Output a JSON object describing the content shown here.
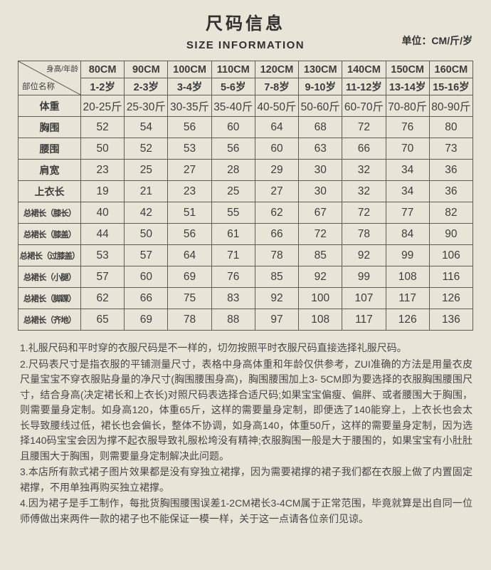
{
  "page": {
    "title": "尺码信息",
    "subtitle": "SIZE INFORMATION",
    "unit_label": "单位：CM/斤/岁"
  },
  "size_table": {
    "corner": {
      "top_right": "身高/年龄",
      "bottom_left": "部位名称"
    },
    "height_headers": [
      "80CM",
      "90CM",
      "100CM",
      "110CM",
      "120CM",
      "130CM",
      "140CM",
      "150CM",
      "160CM"
    ],
    "age_headers": [
      "1-2岁",
      "2-3岁",
      "3-4岁",
      "5-6岁",
      "7-8岁",
      "9-10岁",
      "11-12岁",
      "13-14岁",
      "15-16岁"
    ],
    "rows": [
      {
        "label": "体重",
        "values": [
          "20-25斤",
          "25-30斤",
          "30-35斤",
          "35-40斤",
          "40-50斤",
          "50-60斤",
          "60-70斤",
          "70-80斤",
          "80-90斤"
        ]
      },
      {
        "label": "胸围",
        "values": [
          "52",
          "54",
          "56",
          "60",
          "64",
          "68",
          "72",
          "76",
          "80"
        ]
      },
      {
        "label": "腰围",
        "values": [
          "50",
          "52",
          "53",
          "56",
          "60",
          "63",
          "66",
          "70",
          "73"
        ]
      },
      {
        "label": "肩宽",
        "values": [
          "23",
          "25",
          "27",
          "28",
          "29",
          "30",
          "32",
          "34",
          "36"
        ]
      },
      {
        "label": "上衣长",
        "values": [
          "19",
          "21",
          "23",
          "25",
          "27",
          "30",
          "32",
          "34",
          "36"
        ]
      },
      {
        "label": "总裙长（膝长）",
        "values": [
          "40",
          "42",
          "51",
          "55",
          "62",
          "67",
          "72",
          "77",
          "82"
        ]
      },
      {
        "label": "总裙长（膝盖）",
        "values": [
          "44",
          "50",
          "56",
          "61",
          "66",
          "72",
          "78",
          "84",
          "90"
        ]
      },
      {
        "label": "总裙长（过膝盖）",
        "values": [
          "53",
          "57",
          "64",
          "71",
          "78",
          "85",
          "92",
          "99",
          "106"
        ]
      },
      {
        "label": "总裙长（小腿）",
        "values": [
          "57",
          "60",
          "69",
          "76",
          "85",
          "92",
          "99",
          "108",
          "116"
        ]
      },
      {
        "label": "总裙长（脚踝）",
        "values": [
          "62",
          "66",
          "75",
          "83",
          "92",
          "100",
          "107",
          "117",
          "126"
        ]
      },
      {
        "label": "总裙长（齐地）",
        "values": [
          "65",
          "69",
          "78",
          "88",
          "97",
          "108",
          "117",
          "126",
          "136"
        ]
      }
    ]
  },
  "notes": [
    "1.礼服尺码和平时穿的衣服尺码是不一样的，切勿按照平时衣服尺码直接选择礼服尺码。",
    "2.尺码表尺寸是指衣服的平铺测量尺寸，表格中身高体重和年龄仅供参考，ZUI准确的方法是用量衣皮尺量宝宝不穿衣服贴身量的净尺寸(胸围腰围身高)，胸围腰围加上3- 5CM即为要选择的衣服胸围腰围尺寸，结合身高(决定裙长和上衣长)对照尺码表选择合适尺码;如果宝宝偏瘦、偏胖、或者腰围大于胸围，则需要量身定制。如身高120，体重65斤，这样的需要量身定制，即便选了140能穿上，上衣长也会太长导致腰线过低，裙长也会偏长，整体不协调，如身高140，体重50斤，这样的需要量身定制，因为选择140码宝宝会因为撑不起衣服导致礼服松垮没有精神;衣服胸围一般是大于腰围的，如果宝宝有小肚肚且腰围大于胸围，则需要量身定制解决此问题。",
    "3.本店所有款式裙子图片效果都是没有穿独立裙撑，因为需要裙撑的裙子我们都在衣服上做了内置固定裙撑，不用单独再购买独立裙撑。",
    "4.因为裙子是手工制作，每批货胸围腰围误差1-2CM裙长3-4CM属于正常范围，毕竟就算是出自同一位师傅做出来两件一款的裙子也不能保证一模一样，关于这一点请各位亲们见谅。"
  ],
  "colors": {
    "background": "#e9e4d8",
    "table_border": "#5f5c54",
    "text": "#3b3b3b"
  }
}
